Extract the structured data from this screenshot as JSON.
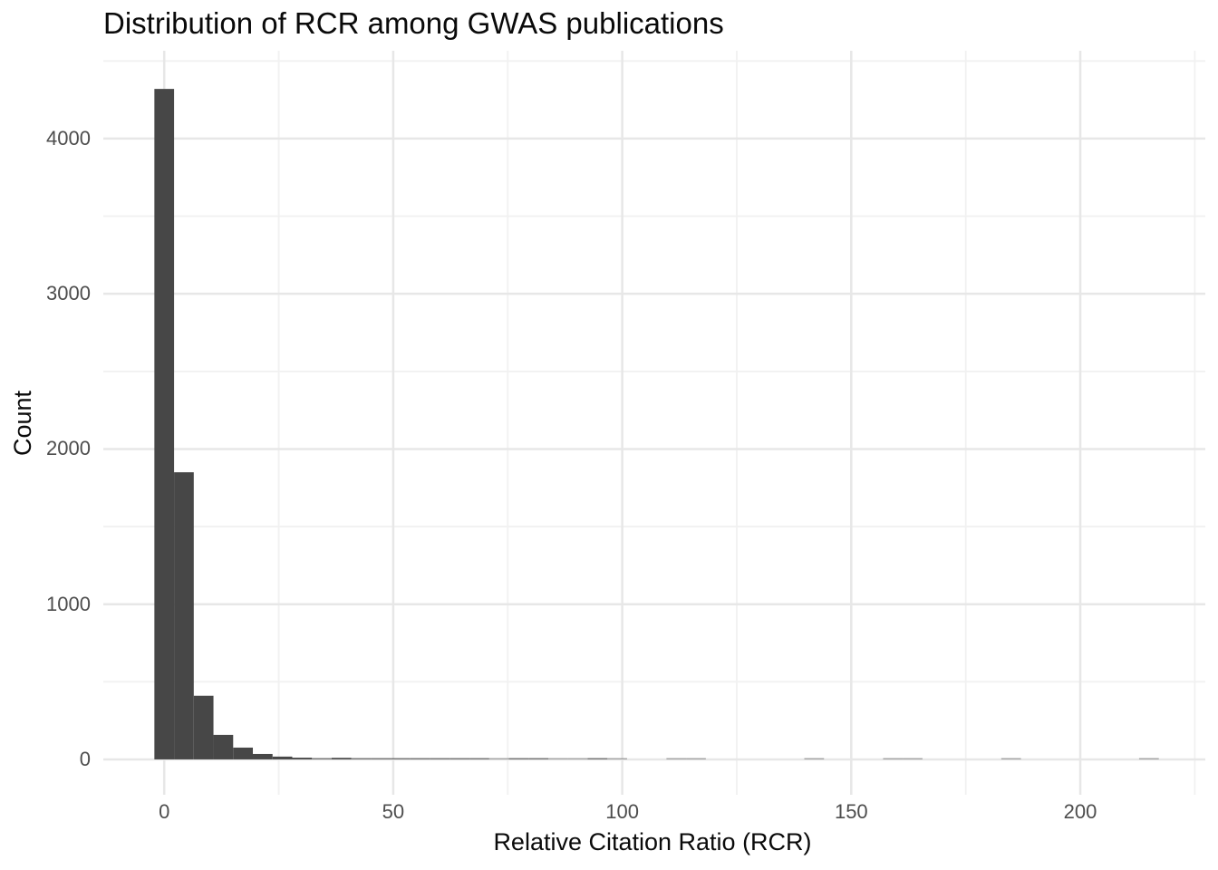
{
  "chart_data": {
    "type": "bar",
    "variant": "histogram",
    "title": "Distribution of RCR among GWAS publications",
    "xlabel": "Relative Citation Ratio (RCR)",
    "ylabel": "Count",
    "grid": "major+minor",
    "legend": "none",
    "x_axis": {
      "range": [
        -13.3,
        227.3
      ],
      "ticks_major": [
        0,
        50,
        100,
        150,
        200
      ],
      "tick_labels": [
        "0",
        "50",
        "100",
        "150",
        "200"
      ],
      "ticks_minor": [
        25,
        75,
        125,
        175,
        225
      ]
    },
    "y_axis": {
      "range": [
        -228,
        4566
      ],
      "ticks_major": [
        0,
        1000,
        2000,
        3000,
        4000
      ],
      "tick_labels": [
        "0",
        "1000",
        "2000",
        "3000",
        "4000"
      ],
      "ticks_minor": [
        500,
        1500,
        2500,
        3500,
        4500
      ]
    },
    "bins": {
      "bin_width": 4.3,
      "first_bin_start": -2.15,
      "counts": [
        4320,
        1850,
        410,
        158,
        76,
        35,
        18,
        11,
        7,
        10,
        5,
        4,
        3,
        2,
        2,
        2,
        2,
        1,
        2,
        2,
        1,
        1,
        2,
        1,
        0,
        0,
        1,
        1,
        0,
        0,
        0,
        0,
        0,
        1,
        0,
        0,
        0,
        1,
        1,
        0,
        0,
        0,
        0,
        1,
        0,
        0,
        0,
        0,
        0,
        0,
        1
      ]
    },
    "colors": {
      "bar": "#474747",
      "grid_major": "#e7e7e7",
      "grid_minor": "#f1f1f1",
      "background": "#ffffff",
      "tick_label": "#4d4d4d",
      "axis_title": "#0a0a0a",
      "title": "#0a0a0a"
    }
  }
}
